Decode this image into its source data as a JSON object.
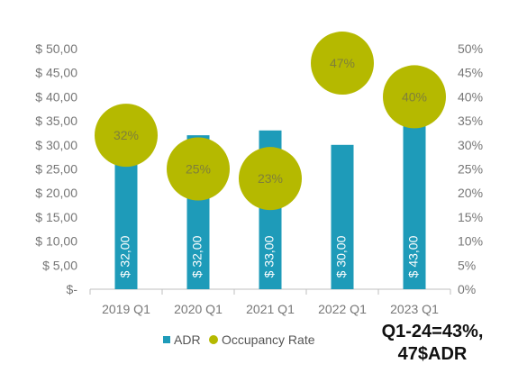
{
  "chart_data": {
    "type": "bar",
    "categories": [
      "2019 Q1",
      "2020 Q1",
      "2021 Q1",
      "2022 Q1",
      "2023 Q1"
    ],
    "series": [
      {
        "name": "ADR",
        "type": "bar",
        "axis": "left",
        "values": [
          32,
          32,
          33,
          30,
          43
        ],
        "data_labels": [
          "$ 32,00",
          "$ 32,00",
          "$ 33,00",
          "$ 30,00",
          "$ 43,00"
        ],
        "color": "#1e9bb9"
      },
      {
        "name": "Occupancy Rate",
        "type": "bubble",
        "axis": "right",
        "values": [
          32,
          25,
          23,
          47,
          40
        ],
        "data_labels": [
          "32%",
          "25%",
          "23%",
          "47%",
          "40%"
        ],
        "color": "#b5b900"
      }
    ],
    "y_left": {
      "min": 0,
      "max": 50,
      "step": 5,
      "tick_labels": [
        "$-",
        "$ 5,00",
        "$ 10,00",
        "$ 15,00",
        "$ 20,00",
        "$ 25,00",
        "$ 30,00",
        "$ 35,00",
        "$ 40,00",
        "$ 45,00",
        "$ 50,00"
      ]
    },
    "y_right": {
      "min": 0,
      "max": 50,
      "step": 5,
      "tick_labels": [
        "0%",
        "5%",
        "10%",
        "15%",
        "20%",
        "25%",
        "30%",
        "35%",
        "40%",
        "45%",
        "50%"
      ]
    },
    "grid": false,
    "legend_position": "bottom-left",
    "title": "",
    "xlabel": "",
    "ylabel": ""
  },
  "annotation": {
    "line1": "Q1-24=43%,",
    "line2": "47$ADR"
  }
}
